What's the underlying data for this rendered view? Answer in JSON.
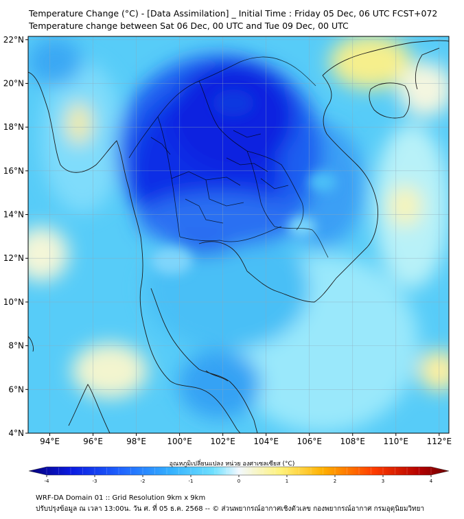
{
  "header": {
    "title_line1": "Temperature Change (°C) - [Data Assimilation] _ Initial Time : Friday 05 Dec, 06 UTC FCST+072",
    "title_line2": "Temperature change between Sat 06 Dec, 00 UTC and Tue 09 Dec, 00 UTC"
  },
  "map": {
    "lat_labels": [
      "4°N",
      "6°N",
      "8°N",
      "10°N",
      "12°N",
      "14°N",
      "16°N",
      "18°N",
      "20°N",
      "22°N"
    ],
    "lon_labels": [
      "94°E",
      "96°E",
      "98°E",
      "100°E",
      "102°E",
      "104°E",
      "106°E",
      "108°E",
      "110°E",
      "112°E"
    ],
    "lat_values": [
      4,
      6,
      8,
      10,
      12,
      14,
      16,
      18,
      20,
      22
    ],
    "lon_values": [
      94,
      96,
      98,
      100,
      102,
      104,
      106,
      108,
      110,
      112
    ]
  },
  "colorbar": {
    "label": "อุณหภูมิเปลี่ยนแปลง หน่วย องศาเซลเซียส (°C)",
    "ticks": [
      "-4",
      "-3",
      "-2",
      "-1",
      "0",
      "1",
      "2",
      "3",
      "4"
    ],
    "tick_values": [
      -4,
      -3,
      -2,
      -1,
      0,
      1,
      2,
      3,
      4
    ],
    "colors": [
      "#06007a",
      "#0a1ae0",
      "#1f64ff",
      "#35b2ff",
      "#6fe0ff",
      "#f2f8ff",
      "#fff27a",
      "#ffb000",
      "#ff3d00",
      "#b30000",
      "#6e0000"
    ]
  },
  "footer": {
    "line1": "WRF-DA Domain 01 :: Grid Resolution 9km x 9km",
    "line2": "ปรับปรุงข้อมูล ณ เวลา 13:00น. วัน ศ. ที่ 05 ธ.ค. 2568 -- © ส่วนพยากรณ์อากาศเชิงตัวเลข กองพยากรณ์อากาศ กรมอุตุนิยมวิทยา"
  }
}
